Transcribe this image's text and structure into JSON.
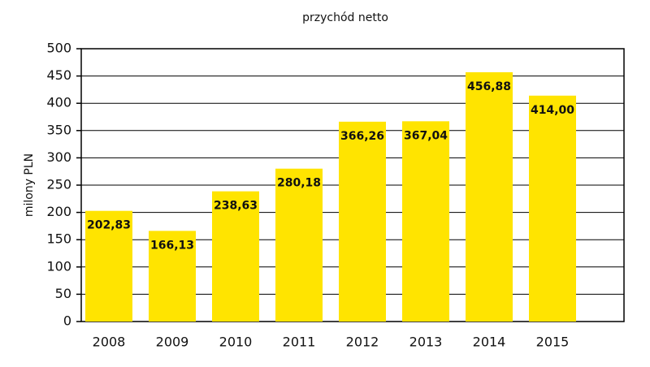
{
  "chart_data": {
    "type": "bar",
    "title": "przychód netto",
    "y_label": "milony PLN",
    "categories": [
      "2008",
      "2009",
      "2010",
      "2011",
      "2012",
      "2013",
      "2014",
      "2015"
    ],
    "values": [
      202.83,
      166.13,
      238.63,
      280.18,
      366.26,
      367.04,
      456.88,
      414.0
    ],
    "value_labels": [
      "202,83",
      "166,13",
      "238,63",
      "280,18",
      "366,26",
      "367,04",
      "456,88",
      "414,00"
    ],
    "color": "#ffe400",
    "ylim": [
      0,
      500
    ],
    "yticks": [
      0,
      50,
      100,
      150,
      200,
      250,
      300,
      350,
      400,
      450,
      500
    ],
    "grid": true
  }
}
